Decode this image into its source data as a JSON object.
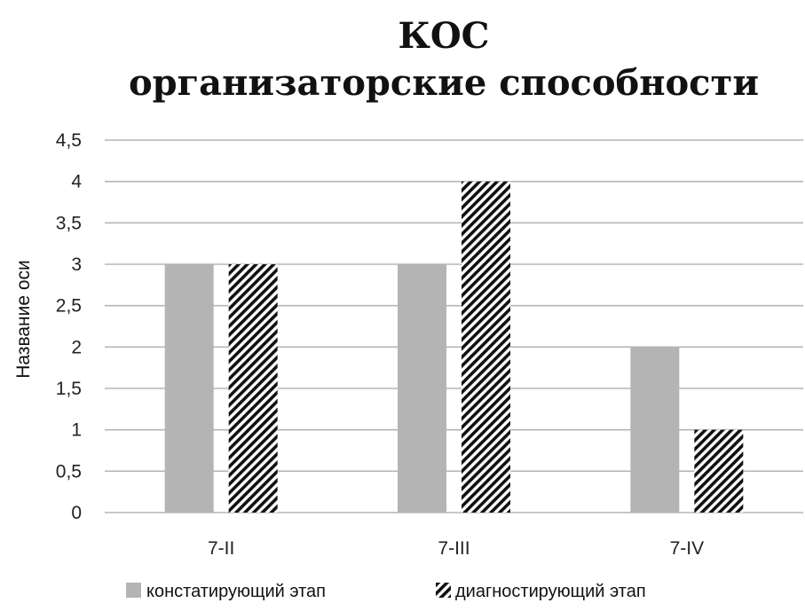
{
  "chart_data": {
    "type": "bar",
    "title": "КОС",
    "subtitle": "организаторские способности",
    "ylabel": "Название оси",
    "xlabel": "",
    "categories": [
      "7-II",
      "7-III",
      "7-IV"
    ],
    "ylim": [
      0,
      4.5
    ],
    "yticks": [
      "0",
      "0,5",
      "1",
      "1,5",
      "2",
      "2,5",
      "3",
      "3,5",
      "4",
      "4,5"
    ],
    "grid": true,
    "legend_position": "bottom",
    "series": [
      {
        "name": "констатирующий этап",
        "values": [
          3,
          3,
          2
        ],
        "fill": "#b4b4b4",
        "pattern": "solid"
      },
      {
        "name": "диагностирующий этап",
        "values": [
          3,
          4,
          1
        ],
        "fill": "#111111",
        "pattern": "diagonal-hatch"
      }
    ]
  }
}
